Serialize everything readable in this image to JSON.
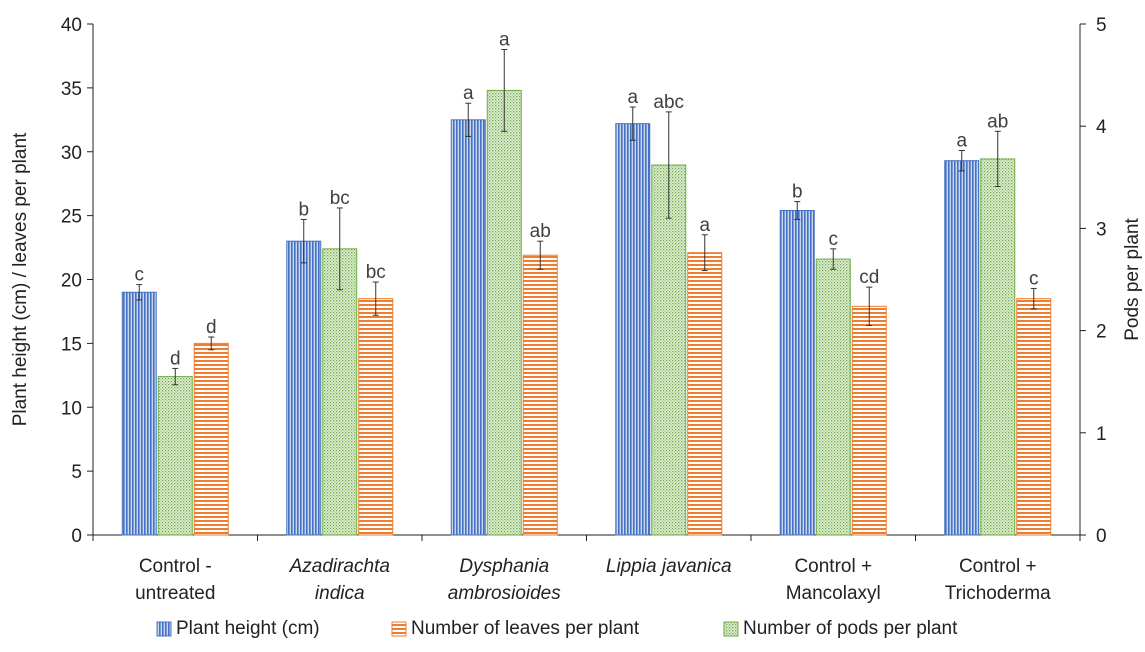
{
  "chart_data": {
    "type": "bar",
    "ylabel_left": "Plant height (cm) / leaves per plant",
    "ylabel_right": "Pods per plant",
    "ylim_left": [
      0,
      40
    ],
    "yticks_left": [
      0,
      5,
      10,
      15,
      20,
      25,
      30,
      35,
      40
    ],
    "ylim_right": [
      0,
      5
    ],
    "yticks_right": [
      0,
      1,
      2,
      3,
      4,
      5
    ],
    "grid": false,
    "legend_position": "bottom",
    "categories": [
      {
        "lines": [
          "Control -",
          "untreated"
        ],
        "italic": false
      },
      {
        "lines": [
          "Azadirachta",
          "indica"
        ],
        "italic": true
      },
      {
        "lines": [
          "Dysphania",
          "ambrosioides"
        ],
        "italic": true
      },
      {
        "lines": [
          "Lippia javanica"
        ],
        "italic": true
      },
      {
        "lines": [
          "Control +",
          "Mancolaxyl"
        ],
        "italic": false
      },
      {
        "lines": [
          "Control +",
          "Trichoderma"
        ],
        "italic": false
      }
    ],
    "series": [
      {
        "name": "Plant height (cm)",
        "axis": "left",
        "color": "#4472c4",
        "pattern": "vertical-lines",
        "values": [
          19.0,
          23.0,
          32.5,
          32.2,
          25.4,
          29.3
        ],
        "errors": [
          0.6,
          1.7,
          1.3,
          1.3,
          0.7,
          0.8
        ],
        "letters": [
          "c",
          "b",
          "a",
          "a",
          "b",
          "a"
        ]
      },
      {
        "name": "Number of pods per plant",
        "axis": "right",
        "color": "#70ad47",
        "pattern": "dots",
        "values": [
          1.55,
          2.8,
          4.35,
          3.62,
          2.7,
          3.68
        ],
        "errors": [
          0.08,
          0.4,
          0.4,
          0.52,
          0.1,
          0.27
        ],
        "letters": [
          "d",
          "bc",
          "a",
          "abc",
          "c",
          "ab"
        ]
      },
      {
        "name": "Number of leaves per plant",
        "axis": "left",
        "color": "#ed7d31",
        "pattern": "horizontal-lines",
        "values": [
          15.0,
          18.5,
          21.9,
          22.1,
          17.9,
          18.5
        ],
        "errors": [
          0.5,
          1.3,
          1.1,
          1.4,
          1.5,
          0.8
        ],
        "letters": [
          "d",
          "bc",
          "ab",
          "a",
          "cd",
          "c"
        ]
      }
    ],
    "legend": [
      {
        "label": "Plant height (cm)",
        "color": "#4472c4",
        "pattern": "vertical-lines"
      },
      {
        "label": "Number of leaves per plant",
        "color": "#ed7d31",
        "pattern": "horizontal-lines"
      },
      {
        "label": "Number of pods per plant",
        "color": "#70ad47",
        "pattern": "dots"
      }
    ]
  }
}
